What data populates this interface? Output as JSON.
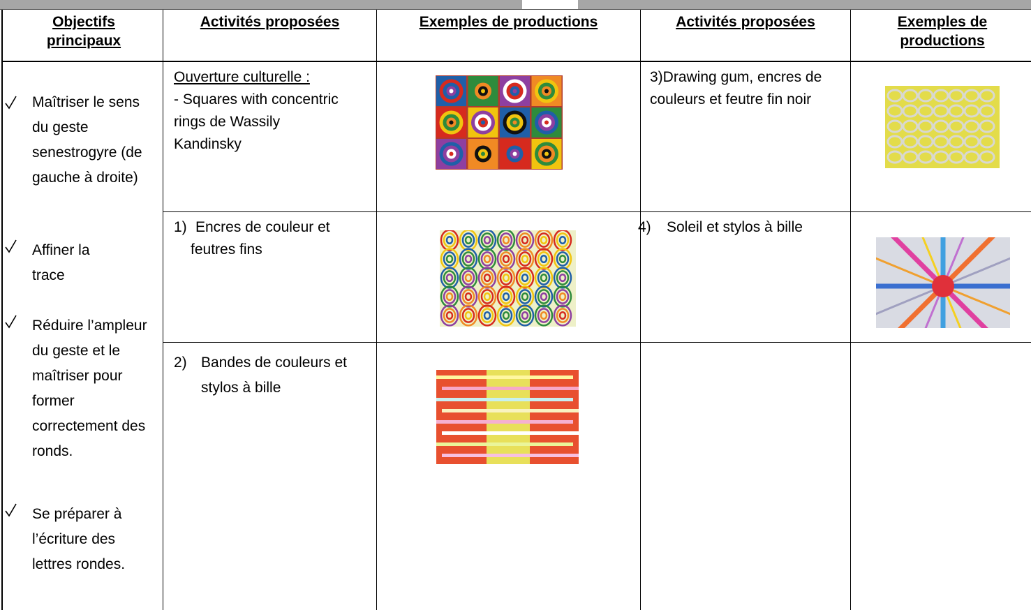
{
  "table": {
    "header": [
      "Objectifs principaux",
      "Activités proposées",
      "Exemples de productions",
      "Activités proposées",
      "Exemples de productions"
    ],
    "objectives": [
      "Maîtriser le sens du geste senestrogyre (de gauche à droite)",
      "Affiner la trace",
      "Réduire l’ampleur du geste et le maîtriser pour former correctement des ronds.",
      "Se préparer à l’écriture des lettres rondes."
    ],
    "rows": [
      {
        "activity_title": "Ouverture culturelle :",
        "activity_text": "- Squares with concentric rings de Wassily Kandinsky",
        "activity2_text": "3)Drawing gum, encres de couleurs et feutre fin noir"
      },
      {
        "activity_number": "1)",
        "activity_text": "Encres de couleur et feutres fins",
        "activity2_number": "4)",
        "activity2_text": "Soleil et stylos à bille"
      },
      {
        "activity_number": "2)",
        "activity_text": "Bandes de couleurs et stylos à bille"
      }
    ]
  }
}
